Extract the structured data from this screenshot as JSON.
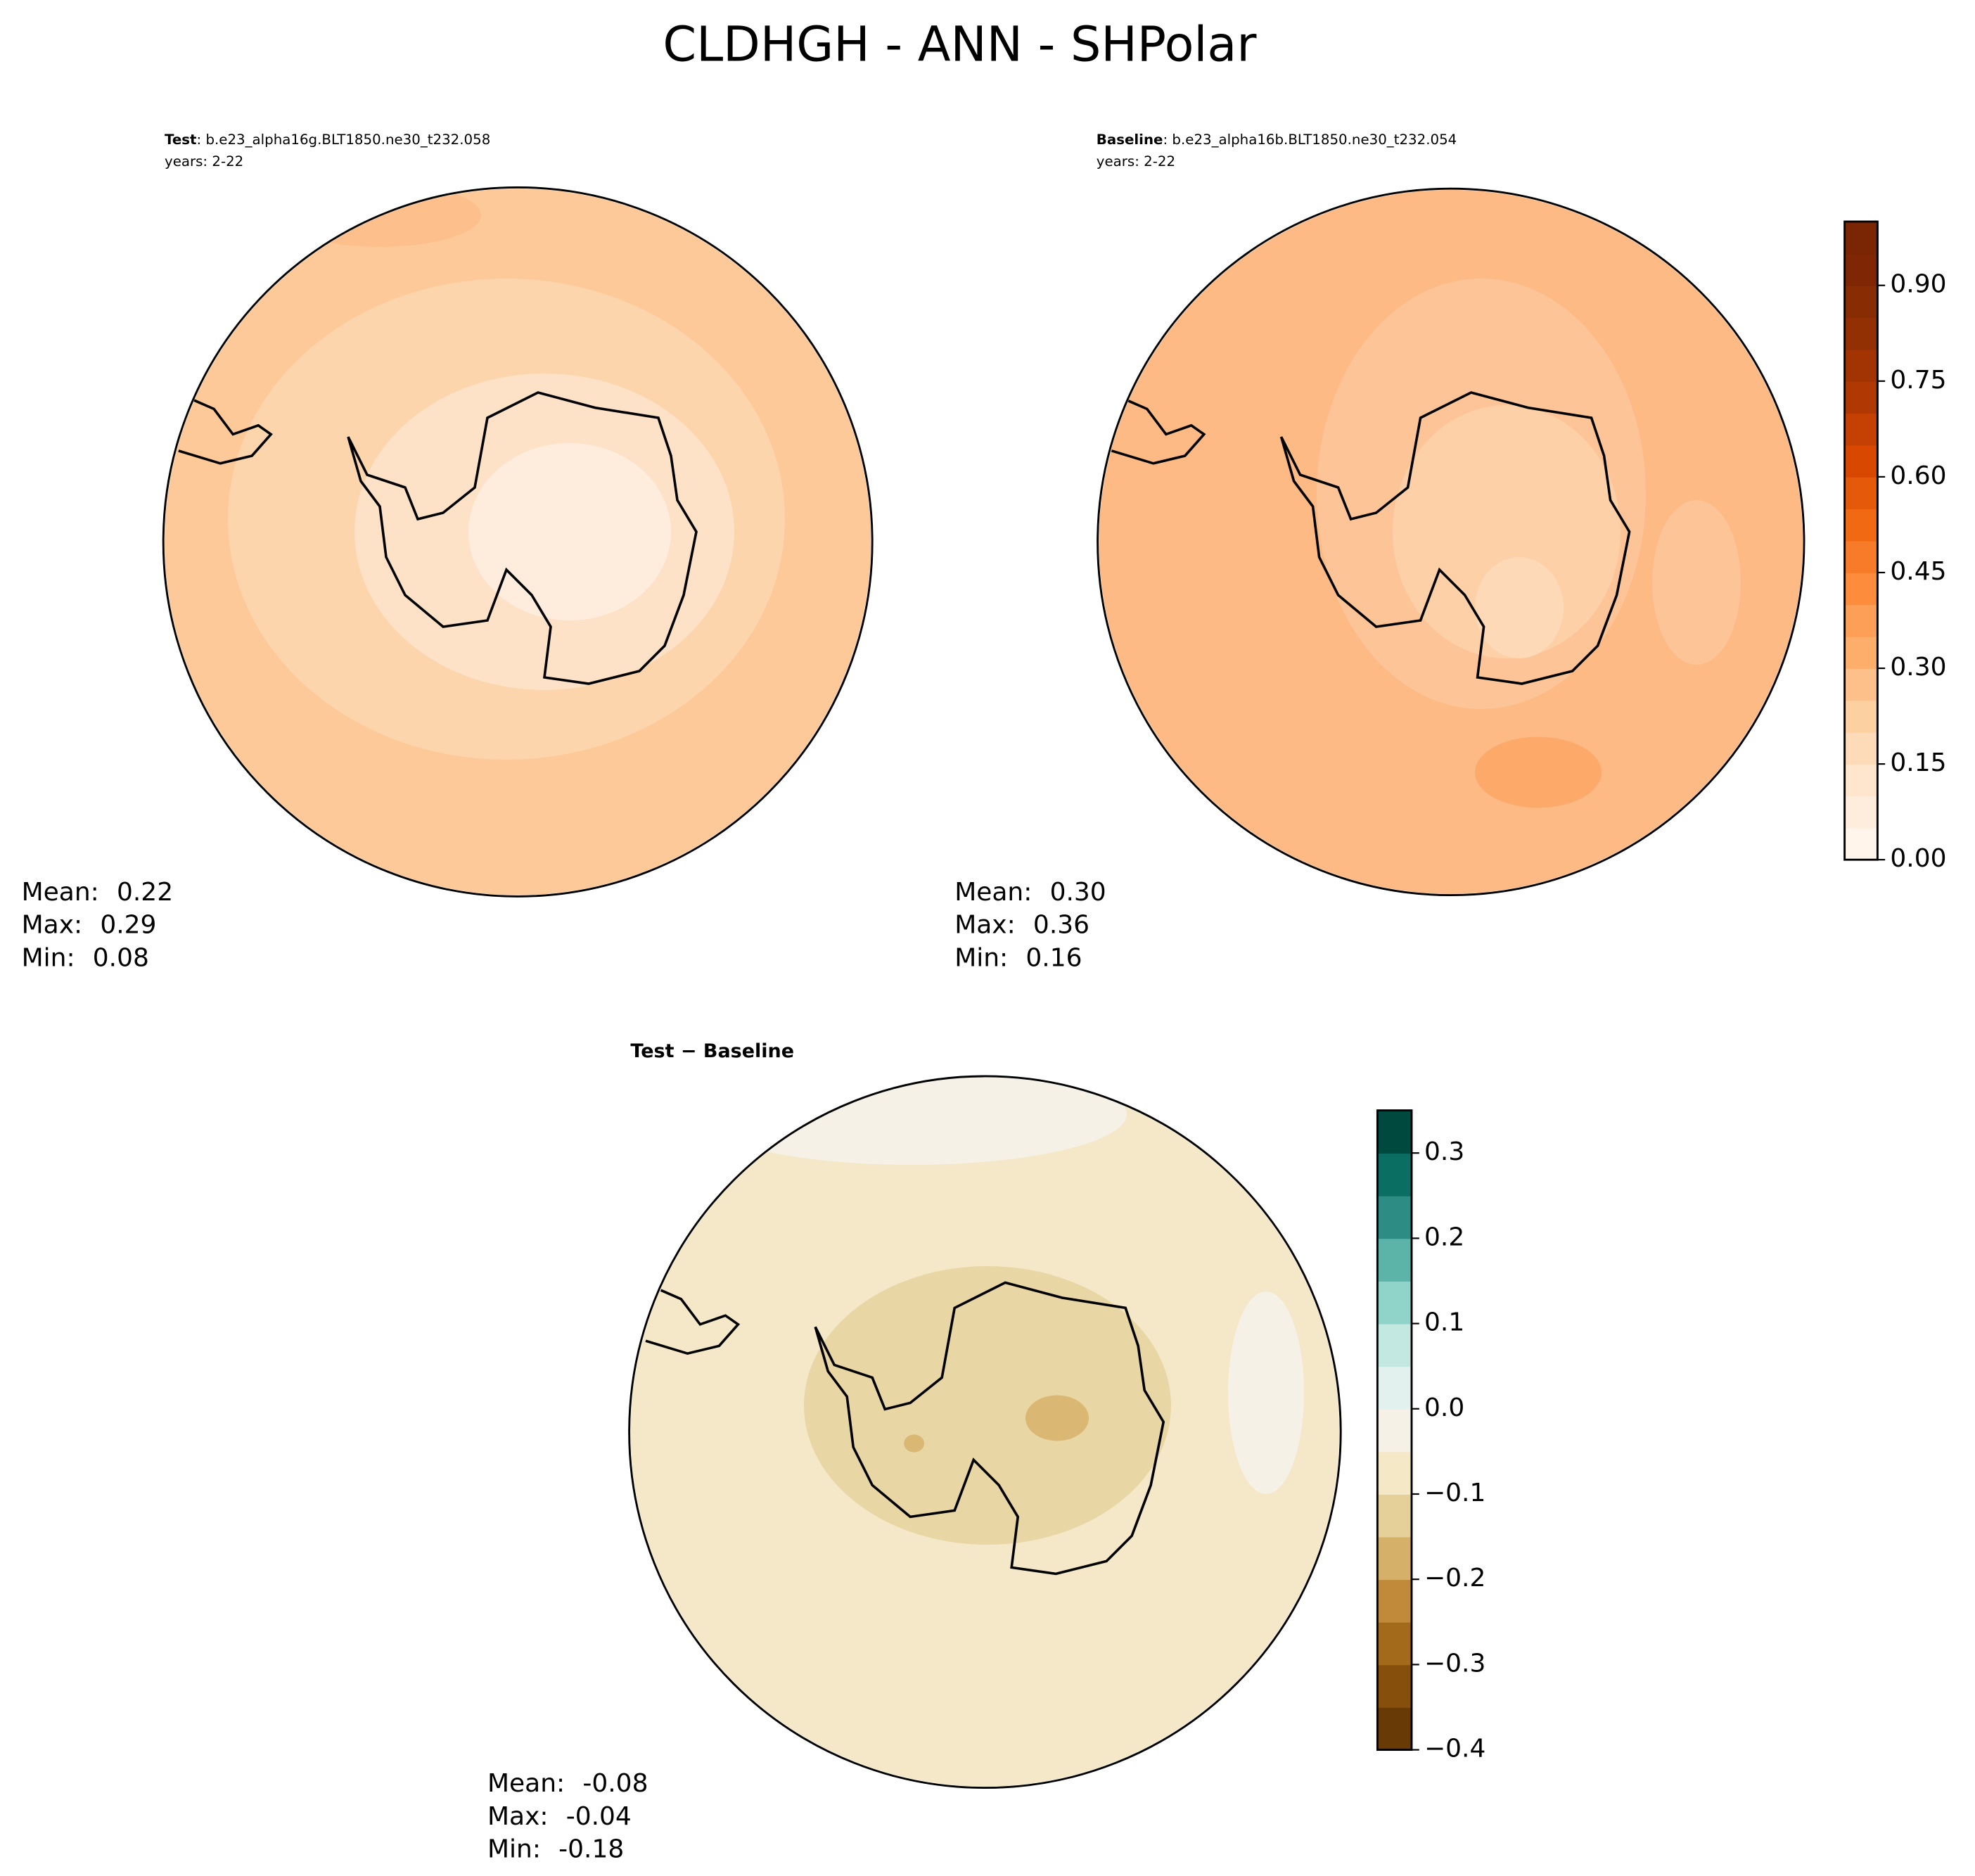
{
  "title": "CLDHGH - ANN - SHPolar",
  "chart_data": [
    {
      "type": "map",
      "label": "Test",
      "case": ": b.e23_alpha16g.BLT1850.ne30_t232.058",
      "years": "years: 2-22",
      "stats": [
        {
          "name": "Mean:",
          "value": "0.22"
        },
        {
          "name": "Max:",
          "value": "0.29"
        },
        {
          "name": "Min:",
          "value": "0.08"
        }
      ]
    },
    {
      "type": "map",
      "label": "Baseline",
      "case": ": b.e23_alpha16b.BLT1850.ne30_t232.054",
      "years": "years: 2-22",
      "stats": [
        {
          "name": "Mean:",
          "value": "0.30"
        },
        {
          "name": "Max:",
          "value": "0.36"
        },
        {
          "name": "Min:",
          "value": "0.16"
        }
      ],
      "colorbar": {
        "ylim": [
          0,
          1
        ],
        "yticks": [
          {
            "value": 0,
            "label": "0.00"
          },
          {
            "value": 0.15,
            "label": "0.15"
          },
          {
            "value": 0.3,
            "label": "0.30"
          },
          {
            "value": 0.45,
            "label": "0.45"
          },
          {
            "value": 0.6,
            "label": "0.60"
          },
          {
            "value": 0.75,
            "label": "0.75"
          },
          {
            "value": 0.9,
            "label": "0.90"
          }
        ],
        "colors": [
          "#fff5eb",
          "#feeddc",
          "#fee6ce",
          "#fddbb8",
          "#fdd0a2",
          "#fdc08a",
          "#fdae6b",
          "#fd9f56",
          "#fd8d3c",
          "#f77b28",
          "#f16913",
          "#e5590a",
          "#d94801",
          "#c44003",
          "#b03903",
          "#a23403",
          "#933003",
          "#882c04",
          "#7f2704",
          "#7a2503"
        ]
      }
    },
    {
      "type": "map",
      "title": "Test − Baseline",
      "stats": [
        {
          "name": "Mean:",
          "value": "-0.08"
        },
        {
          "name": "Max:",
          "value": "-0.04"
        },
        {
          "name": "Min:",
          "value": "-0.18"
        }
      ],
      "colorbar": {
        "ylim": [
          -0.4,
          0.35
        ],
        "yticks": [
          {
            "value": -0.4,
            "label": "−0.4"
          },
          {
            "value": -0.3,
            "label": "−0.3"
          },
          {
            "value": -0.2,
            "label": "−0.2"
          },
          {
            "value": -0.1,
            "label": "−0.1"
          },
          {
            "value": 0,
            "label": "0.0"
          },
          0.1,
          0.2,
          0.3
        ],
        "colors": [
          "#673a06",
          "#86500c",
          "#a36a1c",
          "#c08a3a",
          "#d5b068",
          "#e6d09a",
          "#f4e8c6",
          "#f5f1e6",
          "#e3f1ee",
          "#c3e8e1",
          "#90d3c8",
          "#5cb3a8",
          "#2d8c83",
          "#0b6e63",
          "#00493f"
        ]
      }
    }
  ]
}
